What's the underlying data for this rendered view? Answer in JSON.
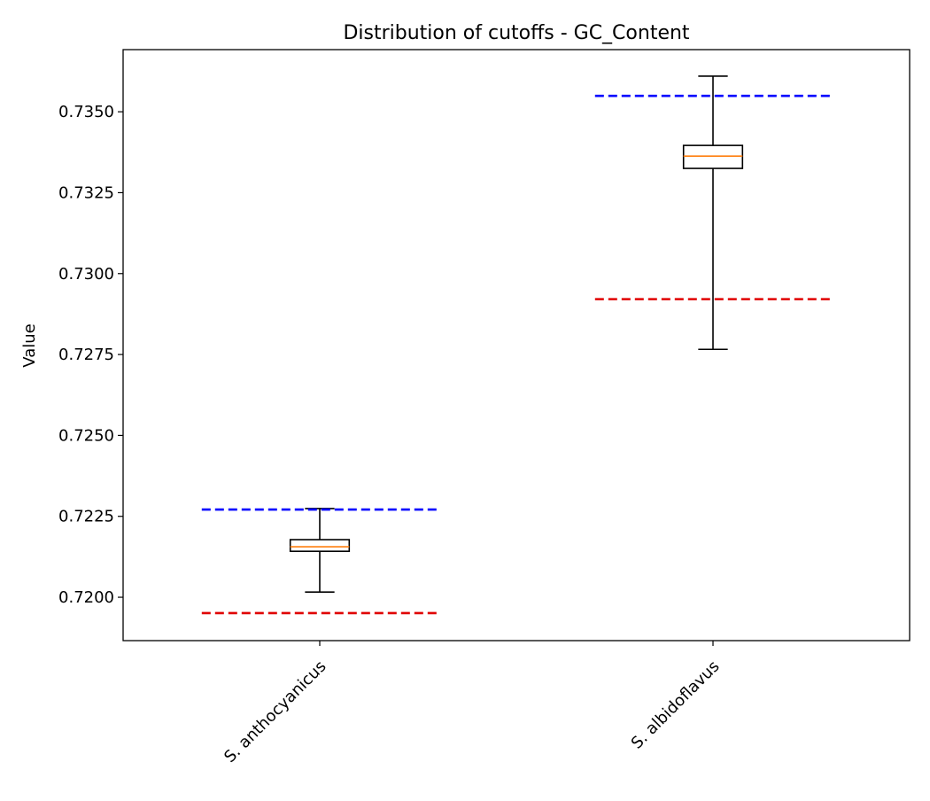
{
  "chart_data": {
    "type": "box",
    "title": "Distribution of cutoffs - GC_Content",
    "xlabel": "",
    "ylabel": "Value",
    "ylim": [
      0.71866,
      0.73692
    ],
    "yticks": [
      0.72,
      0.7225,
      0.725,
      0.7275,
      0.73,
      0.7325,
      0.735
    ],
    "ytick_labels": [
      "0.7200",
      "0.7225",
      "0.7250",
      "0.7275",
      "0.7300",
      "0.7325",
      "0.7350"
    ],
    "categories": [
      "S. anthocyanicus",
      "S. albidoflavus"
    ],
    "grid": false,
    "boxes": [
      {
        "category": "S. anthocyanicus",
        "whisker_low": 0.72016,
        "q1": 0.72142,
        "median": 0.72156,
        "q3": 0.72178,
        "whisker_high": 0.72274,
        "upper_cutoff": 0.72271,
        "lower_cutoff": 0.71951
      },
      {
        "category": "S. albidoflavus",
        "whisker_low": 0.72766,
        "q1": 0.73325,
        "median": 0.73363,
        "q3": 0.73396,
        "whisker_high": 0.7361,
        "upper_cutoff": 0.73549,
        "lower_cutoff": 0.72921
      }
    ],
    "colors": {
      "box": "#000000",
      "median": "#ff7f0e",
      "upper_cutoff": "#0000ff",
      "lower_cutoff": "#e00000"
    }
  }
}
